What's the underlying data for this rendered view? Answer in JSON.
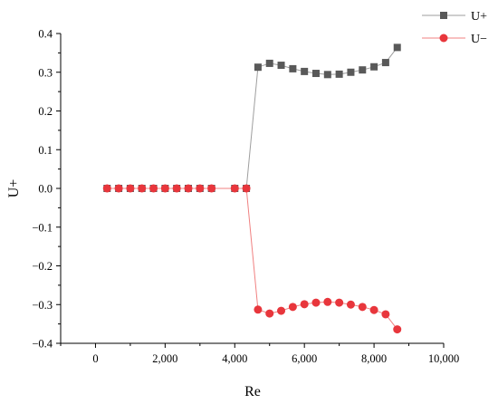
{
  "chart_data": {
    "type": "line",
    "xlabel": "Re",
    "ylabel": "U+",
    "xlim": [
      -1000,
      10000
    ],
    "ylim": [
      -0.4,
      0.4
    ],
    "xticks": [
      0,
      2000,
      4000,
      6000,
      8000,
      10000
    ],
    "xtick_labels": [
      "0",
      "2,000",
      "4,000",
      "6,000",
      "8,000",
      "10,000"
    ],
    "yticks": [
      0.4,
      0.3,
      0.2,
      0.1,
      0.0,
      -0.1,
      -0.2,
      -0.3,
      -0.4
    ],
    "ytick_labels": [
      "0.4",
      "0.3",
      "0.2",
      "0.1",
      "0.0",
      "−0.1",
      "−0.2",
      "−0.3",
      "−0.4"
    ],
    "grid": false,
    "legend_position": "top-right",
    "series": [
      {
        "name": "U+",
        "color": "#595959",
        "line_color": "#9e9e9e",
        "marker": "square",
        "x": [
          333,
          667,
          1000,
          1333,
          1667,
          2000,
          2333,
          2667,
          3000,
          3333,
          4000,
          4333,
          4667,
          5000,
          5333,
          5667,
          6000,
          6333,
          6667,
          7000,
          7333,
          7667,
          8000,
          8333,
          8667
        ],
        "y": [
          0,
          0,
          0,
          0,
          0,
          0,
          0,
          0,
          0,
          0,
          0,
          0,
          0.313,
          0.323,
          0.318,
          0.309,
          0.302,
          0.297,
          0.294,
          0.295,
          0.3,
          0.306,
          0.314,
          0.325,
          0.364
        ]
      },
      {
        "name": "U−",
        "color": "#e8363c",
        "line_color": "#f08080",
        "marker": "circle",
        "x": [
          333,
          667,
          1000,
          1333,
          1667,
          2000,
          2333,
          2667,
          3000,
          3333,
          4000,
          4333,
          4667,
          5000,
          5333,
          5667,
          6000,
          6333,
          6667,
          7000,
          7333,
          7667,
          8000,
          8333,
          8667
        ],
        "y": [
          0,
          0,
          0,
          0,
          0,
          0,
          0,
          0,
          0,
          0,
          0,
          0,
          -0.313,
          -0.323,
          -0.316,
          -0.306,
          -0.299,
          -0.295,
          -0.293,
          -0.295,
          -0.3,
          -0.306,
          -0.314,
          -0.325,
          -0.364
        ]
      }
    ]
  }
}
